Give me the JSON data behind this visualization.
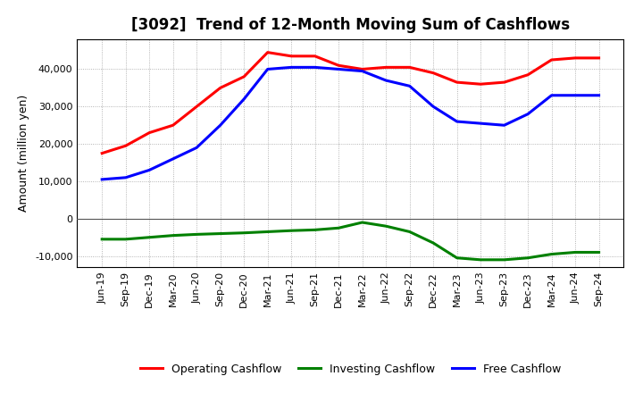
{
  "title": "[3092]  Trend of 12-Month Moving Sum of Cashflows",
  "ylabel": "Amount (million yen)",
  "xlabels": [
    "Jun-19",
    "Sep-19",
    "Dec-19",
    "Mar-20",
    "Jun-20",
    "Sep-20",
    "Dec-20",
    "Mar-21",
    "Jun-21",
    "Sep-21",
    "Dec-21",
    "Mar-22",
    "Jun-22",
    "Sep-22",
    "Dec-22",
    "Mar-23",
    "Jun-23",
    "Sep-23",
    "Dec-23",
    "Mar-24",
    "Jun-24",
    "Sep-24"
  ],
  "operating": [
    17500,
    19500,
    23000,
    25000,
    30000,
    35000,
    38000,
    44500,
    43500,
    43500,
    41000,
    40000,
    40500,
    40500,
    39000,
    36500,
    36000,
    36500,
    38500,
    42500,
    43000,
    43000
  ],
  "investing": [
    -5500,
    -5500,
    -5000,
    -4500,
    -4200,
    -4000,
    -3800,
    -3500,
    -3200,
    -3000,
    -2500,
    -1000,
    -2000,
    -3500,
    -6500,
    -10500,
    -11000,
    -11000,
    -10500,
    -9500,
    -9000,
    -9000
  ],
  "free": [
    10500,
    11000,
    13000,
    16000,
    19000,
    25000,
    32000,
    40000,
    40500,
    40500,
    40000,
    39500,
    37000,
    35500,
    30000,
    26000,
    25500,
    25000,
    28000,
    33000,
    33000,
    33000
  ],
  "operating_color": "#ff0000",
  "investing_color": "#008000",
  "free_color": "#0000ff",
  "bg_color": "#ffffff",
  "plot_bg_color": "#ffffff",
  "ylim": [
    -13000,
    48000
  ],
  "yticks": [
    -10000,
    0,
    10000,
    20000,
    30000,
    40000
  ],
  "line_width": 2.2,
  "title_fontsize": 12,
  "tick_fontsize": 8,
  "ylabel_fontsize": 9,
  "legend_fontsize": 9
}
